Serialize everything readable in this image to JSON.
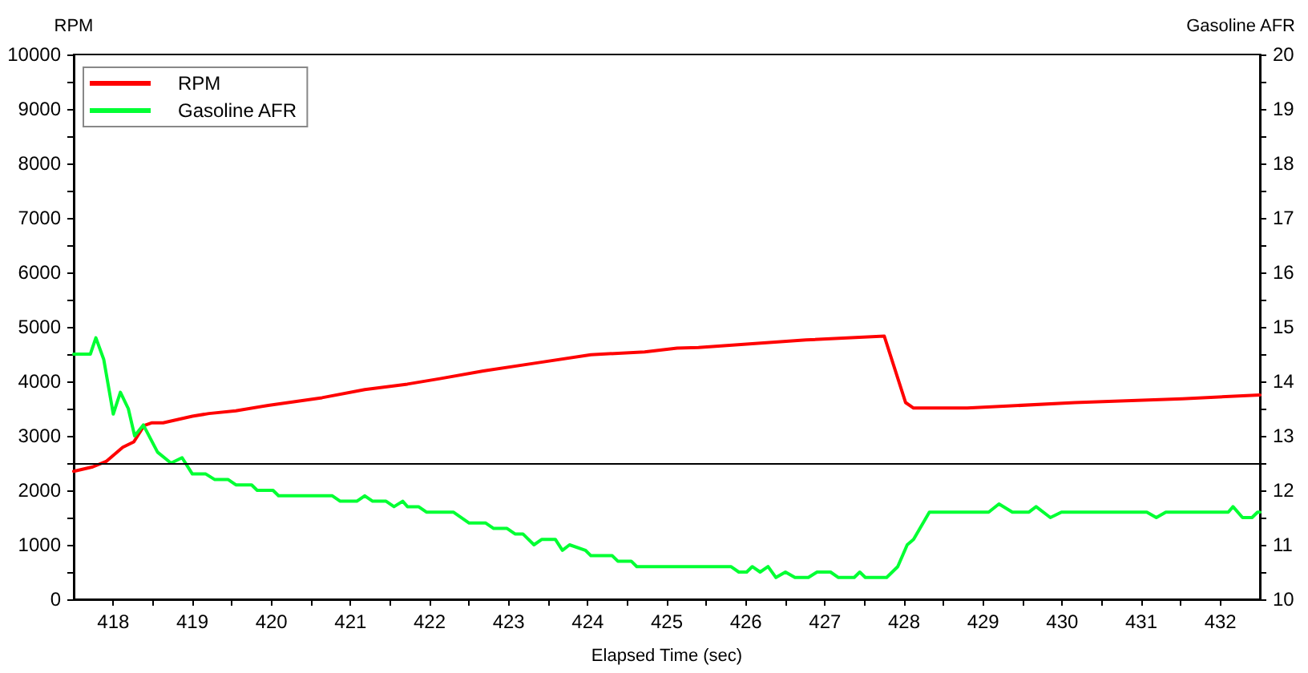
{
  "chart_data": {
    "type": "line",
    "xlabel": "Elapsed Time (sec)",
    "ylabel": "RPM",
    "y2label": "Gasoline AFR",
    "xlim": [
      417.5,
      432.5
    ],
    "xticks": [
      418,
      {
        "value": 418.5,
        "label": null
      },
      419,
      {
        "value": 419.5,
        "label": null
      },
      420,
      {
        "value": 420.5,
        "label": null
      },
      421,
      {
        "value": 421.5,
        "label": null
      },
      422,
      {
        "value": 422.5,
        "label": null
      },
      423,
      {
        "value": 423.5,
        "label": null
      },
      424,
      {
        "value": 424.5,
        "label": null
      },
      425,
      {
        "value": 425.5,
        "label": null
      },
      426,
      {
        "value": 426.5,
        "label": null
      },
      427,
      {
        "value": 427.5,
        "label": null
      },
      428,
      {
        "value": 428.5,
        "label": null
      },
      429,
      {
        "value": 429.5,
        "label": null
      },
      430,
      {
        "value": 430.5,
        "label": null
      },
      431,
      {
        "value": 431.5,
        "label": null
      },
      432
    ],
    "ylim": [
      0,
      10000
    ],
    "yticks": [
      0,
      {
        "value": 500,
        "label": null
      },
      1000,
      {
        "value": 1500,
        "label": null
      },
      2000,
      {
        "value": 2500,
        "label": null
      },
      3000,
      {
        "value": 3500,
        "label": null
      },
      4000,
      {
        "value": 4500,
        "label": null
      },
      5000,
      {
        "value": 5500,
        "label": null
      },
      6000,
      {
        "value": 6500,
        "label": null
      },
      7000,
      {
        "value": 7500,
        "label": null
      },
      8000,
      {
        "value": 8500,
        "label": null
      },
      9000,
      {
        "value": 9500,
        "label": null
      },
      10000
    ],
    "y2lim": [
      10,
      20
    ],
    "y2ticks": [
      10,
      {
        "value": 10.5,
        "label": null
      },
      11,
      {
        "value": 11.5,
        "label": null
      },
      12,
      {
        "value": 12.5,
        "label": null
      },
      13,
      {
        "value": 13.5,
        "label": null
      },
      14,
      {
        "value": 14.5,
        "label": null
      },
      15,
      {
        "value": 15.5,
        "label": null
      },
      16,
      {
        "value": 16.5,
        "label": null
      },
      17,
      {
        "value": 17.5,
        "label": null
      },
      18,
      {
        "value": 18.5,
        "label": null
      },
      19,
      {
        "value": 19.5,
        "label": null
      },
      20
    ],
    "grid": false,
    "legend": "top left",
    "marker": "none",
    "line_style": "solid",
    "ref_lines": [
      {
        "axis": "y",
        "value": 2500,
        "color": "#000000"
      }
    ],
    "series": [
      {
        "name": "RPM",
        "color": "#ff0000",
        "x": [
          417.5,
          417.74,
          417.91,
          418.12,
          418.26,
          418.39,
          418.49,
          418.63,
          419.0,
          419.21,
          419.55,
          419.96,
          420.64,
          421.18,
          421.72,
          422.13,
          422.68,
          423.36,
          424.04,
          424.72,
          425.13,
          425.4,
          426.76,
          427.75,
          428.02,
          428.12,
          428.8,
          430.16,
          431.52,
          432.5
        ],
        "values": [
          2350,
          2430,
          2530,
          2790,
          2890,
          3190,
          3240,
          3240,
          3360,
          3410,
          3460,
          3560,
          3700,
          3850,
          3950,
          4050,
          4190,
          4340,
          4490,
          4540,
          4610,
          4620,
          4760,
          4830,
          3610,
          3510,
          3510,
          3610,
          3680,
          3750
        ]
      },
      {
        "name": "Gasoline AFR",
        "color": "#00ff33",
        "axis": "y2",
        "x": [
          417.5,
          417.71,
          417.78,
          417.88,
          418.0,
          418.09,
          418.19,
          418.27,
          418.38,
          418.56,
          418.73,
          418.87,
          419.0,
          419.17,
          419.28,
          419.45,
          419.55,
          419.75,
          419.82,
          420.02,
          420.09,
          420.77,
          420.87,
          421.08,
          421.18,
          421.28,
          421.45,
          421.55,
          421.66,
          421.72,
          421.86,
          421.96,
          422.3,
          422.5,
          422.71,
          422.81,
          422.98,
          423.08,
          423.18,
          423.32,
          423.42,
          423.59,
          423.68,
          423.77,
          423.97,
          424.04,
          424.31,
          424.38,
          424.55,
          424.62,
          425.81,
          425.91,
          426.01,
          426.08,
          426.18,
          426.28,
          426.38,
          426.5,
          426.62,
          426.79,
          426.9,
          427.07,
          427.17,
          427.37,
          427.44,
          427.51,
          427.78,
          427.92,
          428.04,
          428.12,
          428.32,
          429.07,
          429.2,
          429.37,
          429.58,
          429.67,
          429.85,
          429.99,
          431.07,
          431.19,
          431.31,
          432.1,
          432.16,
          432.28,
          432.4,
          432.47,
          432.5
        ],
        "values": [
          14.5,
          14.5,
          14.8,
          14.4,
          13.4,
          13.8,
          13.5,
          13.0,
          13.2,
          12.7,
          12.5,
          12.6,
          12.3,
          12.3,
          12.2,
          12.2,
          12.1,
          12.1,
          12.0,
          12.0,
          11.9,
          11.9,
          11.8,
          11.8,
          11.9,
          11.8,
          11.8,
          11.7,
          11.8,
          11.7,
          11.7,
          11.6,
          11.6,
          11.4,
          11.4,
          11.3,
          11.3,
          11.2,
          11.2,
          11.0,
          11.1,
          11.1,
          10.9,
          11.0,
          10.9,
          10.8,
          10.8,
          10.7,
          10.7,
          10.6,
          10.6,
          10.5,
          10.5,
          10.6,
          10.5,
          10.6,
          10.4,
          10.5,
          10.4,
          10.4,
          10.5,
          10.5,
          10.4,
          10.4,
          10.5,
          10.4,
          10.4,
          10.6,
          11.0,
          11.1,
          11.6,
          11.6,
          11.75,
          11.6,
          11.6,
          11.7,
          11.5,
          11.6,
          11.6,
          11.5,
          11.6,
          11.6,
          11.7,
          11.5,
          11.5,
          11.6,
          11.6
        ]
      }
    ]
  }
}
